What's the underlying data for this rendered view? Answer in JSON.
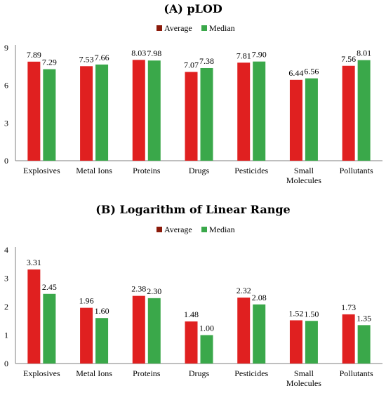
{
  "chart_data": [
    {
      "type": "bar",
      "title": "(A) pLOD",
      "categories": [
        "Explosives",
        "Metal Ions",
        "Proteins",
        "Drugs",
        "Pesticides",
        "Small Molecules",
        "Pollutants"
      ],
      "category_lines": [
        [
          "Explosives"
        ],
        [
          "Metal Ions"
        ],
        [
          "Proteins"
        ],
        [
          "Drugs"
        ],
        [
          "Pesticides"
        ],
        [
          "Small",
          "Molecules"
        ],
        [
          "Pollutants"
        ]
      ],
      "series": [
        {
          "name": "Average",
          "color": "#e02020",
          "legend_color": "#8b1a0a",
          "values": [
            7.89,
            7.53,
            8.03,
            7.07,
            7.81,
            6.44,
            7.56
          ]
        },
        {
          "name": "Median",
          "color": "#3aa84a",
          "legend_color": "#3aa84a",
          "values": [
            7.29,
            7.66,
            7.98,
            7.38,
            7.9,
            6.56,
            8.01
          ]
        }
      ],
      "ylim": [
        0,
        9
      ],
      "yticks": [
        0,
        3,
        6,
        9
      ],
      "legend": "top"
    },
    {
      "type": "bar",
      "title": "(B) Logarithm of Linear Range",
      "categories": [
        "Explosives",
        "Metal Ions",
        "Proteins",
        "Drugs",
        "Pesticides",
        "Small Molecules",
        "Pollutants"
      ],
      "category_lines": [
        [
          "Explosives"
        ],
        [
          "Metal Ions"
        ],
        [
          "Proteins"
        ],
        [
          "Drugs"
        ],
        [
          "Pesticides"
        ],
        [
          "Small",
          "Molecules"
        ],
        [
          "Pollutants"
        ]
      ],
      "series": [
        {
          "name": "Average",
          "color": "#e02020",
          "legend_color": "#8b1a0a",
          "values": [
            3.31,
            1.96,
            2.38,
            1.48,
            2.32,
            1.52,
            1.73
          ]
        },
        {
          "name": "Median",
          "color": "#3aa84a",
          "legend_color": "#3aa84a",
          "values": [
            2.45,
            1.6,
            2.3,
            1.0,
            2.08,
            1.5,
            1.35
          ]
        }
      ],
      "ylim": [
        0,
        4
      ],
      "yticks": [
        0,
        1,
        2,
        3,
        4
      ],
      "legend": "top"
    }
  ]
}
